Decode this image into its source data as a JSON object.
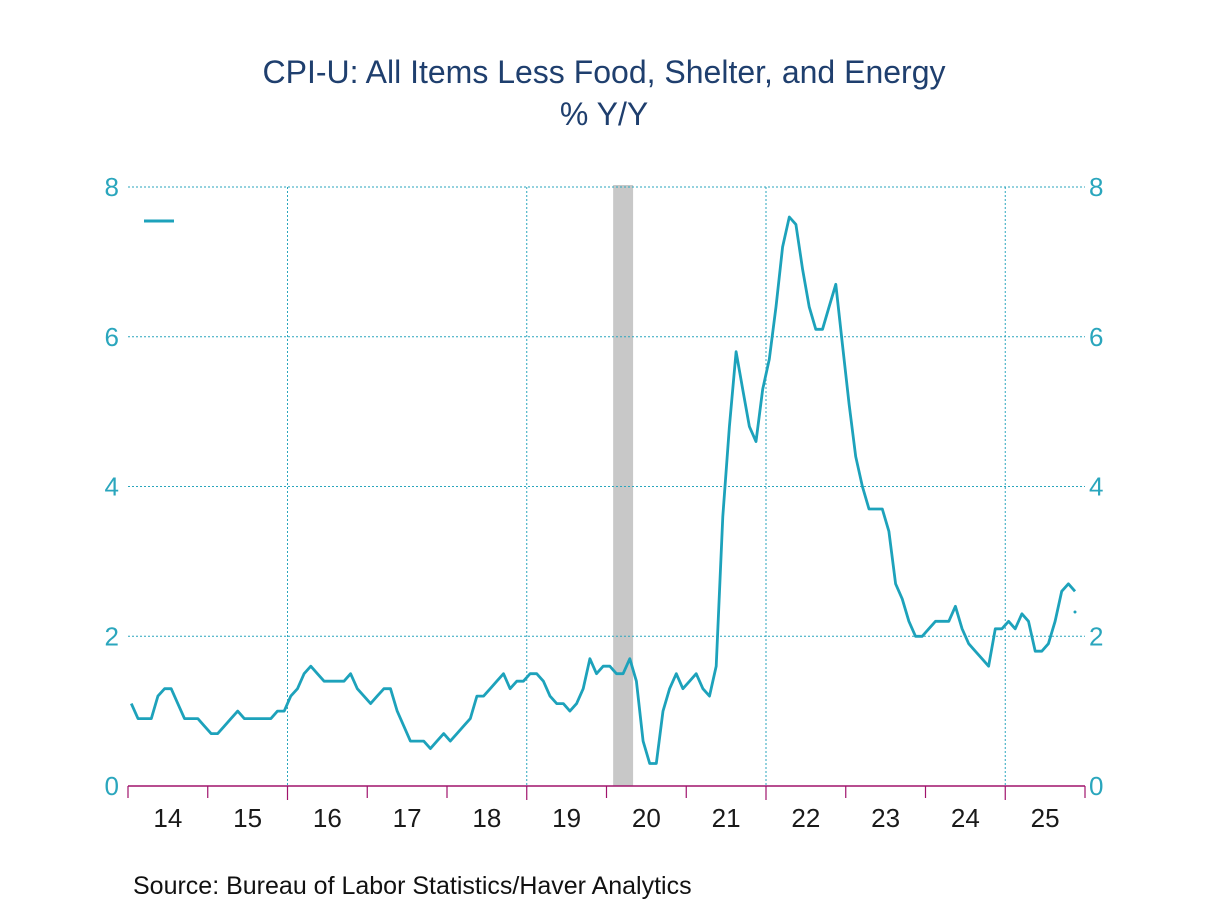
{
  "title": "CPI-U: All Items Less Food, Shelter, and Energy",
  "subtitle": "% Y/Y",
  "source": "Source:  Bureau of Labor Statistics/Haver Analytics",
  "colors": {
    "line": "#1da2bb",
    "grid": "#2aa6bd",
    "recession": "#c8c8c8",
    "title": "#1f3f6e"
  },
  "chart_data": {
    "type": "line",
    "title": "CPI-U: All Items Less Food, Shelter, and Energy",
    "subtitle": "% Y/Y",
    "xlabel": "",
    "ylabel": "",
    "ylim": [
      0,
      8
    ],
    "y_ticks": [
      0,
      2,
      4,
      6,
      8
    ],
    "x_ticks": [
      "14",
      "15",
      "16",
      "17",
      "18",
      "19",
      "20",
      "21",
      "22",
      "23",
      "24",
      "25"
    ],
    "grid": true,
    "dual_y_axis": true,
    "recession_shading": [
      {
        "start": "2020-02",
        "end": "2020-04"
      }
    ],
    "legend_marker": "top-left",
    "series": [
      {
        "start": "2014-01",
        "frequency": "monthly",
        "values": [
          1.1,
          0.9,
          0.9,
          0.9,
          1.2,
          1.3,
          1.3,
          1.1,
          0.9,
          0.9,
          0.9,
          0.8,
          0.7,
          0.7,
          0.8,
          0.9,
          1.0,
          0.9,
          0.9,
          0.9,
          0.9,
          0.9,
          1.0,
          1.0,
          1.2,
          1.3,
          1.5,
          1.6,
          1.5,
          1.4,
          1.4,
          1.4,
          1.4,
          1.5,
          1.3,
          1.2,
          1.1,
          1.2,
          1.3,
          1.3,
          1.0,
          0.8,
          0.6,
          0.6,
          0.6,
          0.5,
          0.6,
          0.7,
          0.6,
          0.7,
          0.8,
          0.9,
          1.2,
          1.2,
          1.3,
          1.4,
          1.5,
          1.3,
          1.4,
          1.4,
          1.5,
          1.5,
          1.4,
          1.2,
          1.1,
          1.1,
          1.0,
          1.1,
          1.3,
          1.7,
          1.5,
          1.6,
          1.6,
          1.5,
          1.5,
          1.7,
          1.4,
          0.6,
          0.3,
          0.3,
          1.0,
          1.3,
          1.5,
          1.3,
          1.4,
          1.5,
          1.3,
          1.2,
          1.6,
          3.6,
          4.8,
          5.8,
          5.3,
          4.8,
          4.6,
          5.3,
          5.7,
          6.4,
          7.2,
          7.6,
          7.5,
          6.9,
          6.4,
          6.1,
          6.1,
          6.4,
          6.7,
          5.9,
          5.1,
          4.4,
          4.0,
          3.7,
          3.7,
          3.7,
          3.4,
          2.7,
          2.5,
          2.2,
          2.0,
          2.0,
          2.1,
          2.2,
          2.2,
          2.2,
          2.4,
          2.1,
          1.9,
          1.8,
          1.7,
          1.6,
          2.1,
          2.1,
          2.2,
          2.1,
          2.3,
          2.2,
          1.8,
          1.8,
          1.9,
          2.2,
          2.6,
          2.7,
          2.6
        ]
      }
    ]
  }
}
